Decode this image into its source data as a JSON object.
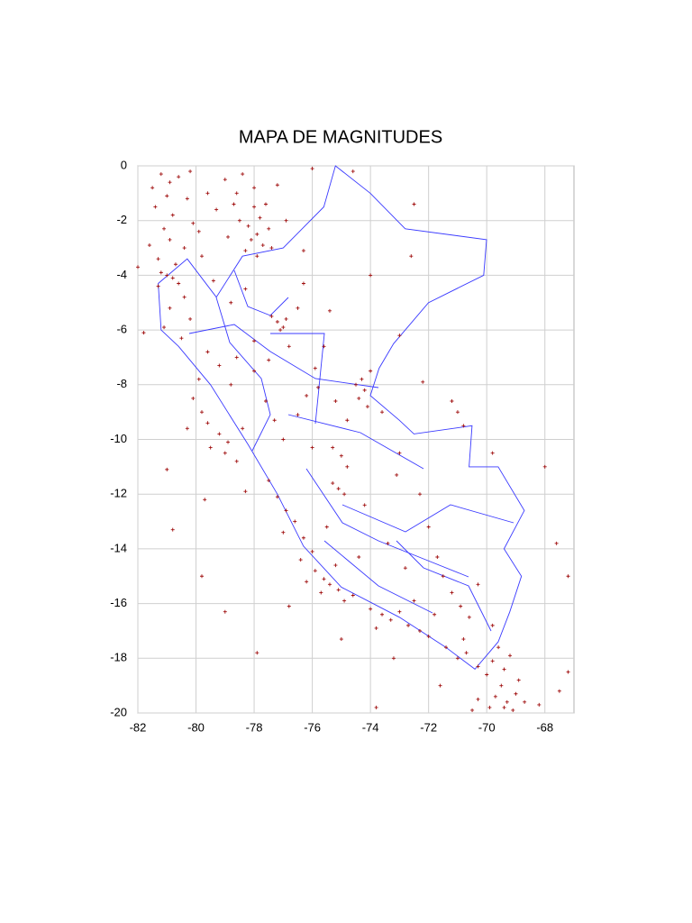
{
  "chart_data": {
    "type": "scatter",
    "title": "MAPA DE MAGNITUDES",
    "xlim": [
      -82,
      -67
    ],
    "ylim": [
      -20,
      0
    ],
    "xticks": [
      -82,
      -80,
      -78,
      -76,
      -74,
      -72,
      -70,
      -68
    ],
    "yticks": [
      0,
      -2,
      -4,
      -6,
      -8,
      -10,
      -12,
      -14,
      -16,
      -18,
      -20
    ],
    "grid": true,
    "color": "#a01010",
    "x": [
      -81.2,
      -80.9,
      -81.0,
      -80.6,
      -81.4,
      -80.8,
      -81.1,
      -80.3,
      -81.5,
      -80.9,
      -80.1,
      -79.9,
      -80.4,
      -79.6,
      -79.3,
      -81.6,
      -81.3,
      -80.7,
      -79.8,
      -80.2,
      -78.4,
      -78.6,
      -78.0,
      -77.8,
      -78.2,
      -77.9,
      -78.1,
      -77.7,
      -78.3,
      -77.9,
      -78.7,
      -78.5,
      -77.6,
      -77.5,
      -78.0,
      -79.0,
      -78.9,
      -77.4,
      -76.9,
      -77.2,
      -81.0,
      -80.8,
      -81.2,
      -80.6,
      -81.3,
      -80.4,
      -80.9,
      -80.2,
      -81.1,
      -80.5,
      -77.2,
      -77.0,
      -77.4,
      -76.9,
      -77.1,
      -78.3,
      -78.8,
      -79.4,
      -78.0,
      -76.5,
      -79.6,
      -79.2,
      -78.6,
      -78.0,
      -77.5,
      -76.8,
      -76.3,
      -75.9,
      -79.9,
      -78.8,
      -80.1,
      -79.8,
      -79.6,
      -79.2,
      -78.9,
      -79.0,
      -78.6,
      -79.5,
      -80.3,
      -78.4,
      -74.3,
      -74.2,
      -74.4,
      -74.1,
      -74.5,
      -74.0,
      -75.2,
      -75.8,
      -73.6,
      -74.8,
      -77.3,
      -77.0,
      -76.5,
      -76.0,
      -75.3,
      -75.0,
      -74.8,
      -75.1,
      -74.9,
      -75.3,
      -77.5,
      -77.2,
      -76.9,
      -76.6,
      -76.3,
      -76.0,
      -76.4,
      -77.0,
      -75.5,
      -74.2,
      -75.9,
      -75.6,
      -75.4,
      -75.1,
      -75.7,
      -74.9,
      -74.6,
      -76.2,
      -75.2,
      -74.4,
      -74.0,
      -73.6,
      -73.3,
      -73.0,
      -72.7,
      -72.3,
      -72.0,
      -73.8,
      -72.5,
      -71.8,
      -71.5,
      -71.2,
      -70.9,
      -70.6,
      -71.7,
      -72.8,
      -73.4,
      -70.3,
      -69.8,
      -70.8,
      -71.4,
      -71.0,
      -70.7,
      -70.3,
      -70.0,
      -69.8,
      -69.6,
      -69.4,
      -69.5,
      -69.7,
      -69.3,
      -69.1,
      -69.4,
      -69.0,
      -69.9,
      -70.3,
      -68.9,
      -69.2,
      -68.7,
      -70.5,
      -71.0,
      -71.2,
      -70.8,
      -69.8,
      -68.0,
      -67.6,
      -67.2,
      -67.5,
      -67.2,
      -68.2,
      -72.6,
      -74.0,
      -73.0,
      -72.2,
      -73.0,
      -72.3,
      -73.1,
      -76.0,
      -74.6,
      -72.5,
      -82.0,
      -81.8,
      -81.0,
      -80.8,
      -79.8,
      -79.0,
      -77.9,
      -76.3,
      -75.4,
      -73.8,
      -75.6,
      -76.2,
      -77.6,
      -78.3,
      -79.7,
      -76.8,
      -75.0,
      -73.2,
      -71.6,
      -72.0
    ],
    "values": [
      -0.3,
      -0.6,
      -1.1,
      -0.4,
      -1.5,
      -1.8,
      -2.3,
      -1.2,
      -0.8,
      -2.7,
      -2.1,
      -2.4,
      -3.0,
      -1.0,
      -1.6,
      -2.9,
      -3.4,
      -3.6,
      -3.3,
      -0.2,
      -0.3,
      -1.0,
      -1.5,
      -1.9,
      -2.2,
      -2.5,
      -2.7,
      -2.9,
      -3.1,
      -3.3,
      -1.4,
      -2.0,
      -1.4,
      -2.3,
      -0.8,
      -0.5,
      -2.6,
      -3.0,
      -2.0,
      -0.7,
      -4.0,
      -4.1,
      -3.9,
      -4.3,
      -4.4,
      -4.8,
      -5.2,
      -5.6,
      -5.9,
      -6.3,
      -5.7,
      -5.9,
      -5.5,
      -5.6,
      -6.0,
      -4.5,
      -5.0,
      -4.2,
      -6.4,
      -5.2,
      -6.8,
      -7.3,
      -7.0,
      -7.5,
      -7.1,
      -6.6,
      -4.3,
      -7.4,
      -7.8,
      -8.0,
      -8.5,
      -9.0,
      -9.4,
      -9.8,
      -10.1,
      -10.5,
      -10.8,
      -10.3,
      -9.6,
      -9.6,
      -7.8,
      -8.2,
      -8.5,
      -8.8,
      -8.0,
      -7.5,
      -8.6,
      -8.1,
      -9.0,
      -9.3,
      -9.3,
      -10.0,
      -9.1,
      -10.3,
      -10.3,
      -10.6,
      -11.0,
      -11.8,
      -12.0,
      -11.6,
      -11.5,
      -12.1,
      -12.6,
      -13.0,
      -13.6,
      -14.1,
      -14.4,
      -13.4,
      -13.2,
      -12.4,
      -14.8,
      -15.1,
      -15.3,
      -15.5,
      -15.6,
      -15.9,
      -15.7,
      -15.2,
      -14.6,
      -14.3,
      -16.2,
      -16.4,
      -16.6,
      -16.3,
      -16.8,
      -17.0,
      -17.2,
      -16.9,
      -15.9,
      -16.4,
      -15.0,
      -15.6,
      -16.1,
      -16.5,
      -14.3,
      -14.7,
      -13.8,
      -15.3,
      -16.8,
      -17.3,
      -17.6,
      -18.0,
      -17.8,
      -18.3,
      -18.6,
      -18.1,
      -17.6,
      -18.4,
      -19.0,
      -19.4,
      -19.6,
      -19.9,
      -19.8,
      -19.3,
      -19.8,
      -19.5,
      -18.8,
      -17.9,
      -19.6,
      -19.9,
      -9.0,
      -8.6,
      -9.5,
      -10.5,
      -11.0,
      -13.8,
      -15.0,
      -19.2,
      -18.5,
      -19.7,
      -3.3,
      -4.0,
      -6.2,
      -7.9,
      -10.5,
      -12.0,
      -11.3,
      -0.1,
      -0.2,
      -1.4,
      -3.7,
      -6.1,
      -11.1,
      -13.3,
      -15.0,
      -16.3,
      -17.8,
      -3.1,
      -5.3,
      -19.8,
      -6.6,
      -8.4,
      -8.6,
      -11.9,
      -12.2,
      -16.1,
      -17.3,
      -18.0,
      -19.0,
      -13.2
    ]
  }
}
